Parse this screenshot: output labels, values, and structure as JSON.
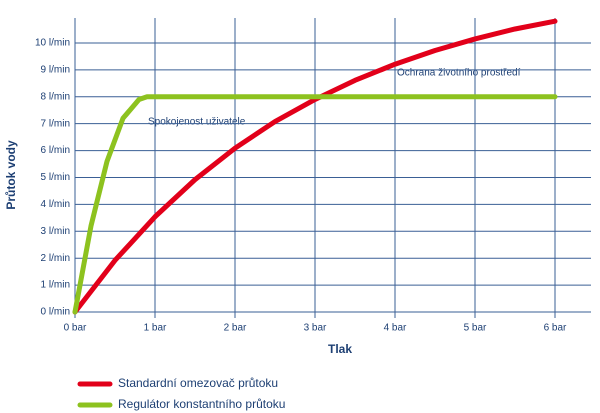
{
  "chart_data": {
    "type": "line",
    "x_label": "Tlak",
    "y_label": "Průtok vody",
    "xlim": [
      0,
      6.45
    ],
    "ylim": [
      0,
      11.3
    ],
    "xticks": [
      {
        "value": 0,
        "label": "0 bar"
      },
      {
        "value": 1,
        "label": "1 bar"
      },
      {
        "value": 2,
        "label": "2 bar"
      },
      {
        "value": 3,
        "label": "3 bar"
      },
      {
        "value": 4,
        "label": "4 bar"
      },
      {
        "value": 5,
        "label": "5 bar"
      },
      {
        "value": 6,
        "label": "6 bar"
      }
    ],
    "yticks": [
      {
        "value": 0,
        "label": "0 l/min"
      },
      {
        "value": 1,
        "label": "1 l/min"
      },
      {
        "value": 2,
        "label": "2 l/min"
      },
      {
        "value": 3,
        "label": "3 l/min"
      },
      {
        "value": 4,
        "label": "4 l/min"
      },
      {
        "value": 5,
        "label": "5 l/min"
      },
      {
        "value": 6,
        "label": "6 l/min"
      },
      {
        "value": 7,
        "label": "7 l/min"
      },
      {
        "value": 8,
        "label": "8 l/min"
      },
      {
        "value": 9,
        "label": "9 l/min"
      },
      {
        "value": 10,
        "label": "10 l/min"
      }
    ],
    "grid": true,
    "series": [
      {
        "name": "Standardní omezovač průtoku",
        "color": "#e2001a",
        "x": [
          0,
          0.5,
          1,
          1.5,
          2,
          2.5,
          3,
          3.5,
          4,
          4.5,
          5,
          5.5,
          6
        ],
        "values": [
          0,
          1.92,
          3.54,
          4.92,
          6.09,
          7.08,
          7.9,
          8.61,
          9.21,
          9.72,
          10.15,
          10.52,
          10.81
        ]
      },
      {
        "name": "Regulátor konstantního průtoku",
        "color": "#8dc21f",
        "x": [
          0,
          0.2,
          0.4,
          0.6,
          0.8,
          0.9,
          6
        ],
        "values": [
          0,
          3.2,
          5.6,
          7.2,
          7.9,
          8,
          8
        ]
      }
    ],
    "annotations": [
      "Spokojenost uživatele",
      "Ochrana životního prostředí"
    ]
  }
}
